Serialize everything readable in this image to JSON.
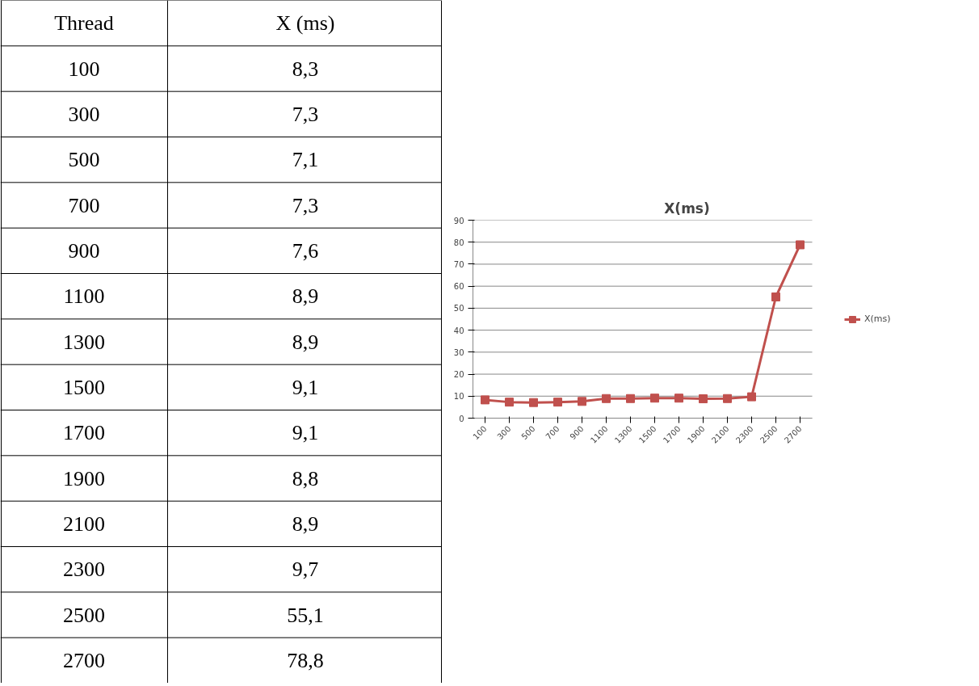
{
  "chart_data": {
    "type": "line",
    "title": "X(ms)",
    "annotations": [
      "Thread",
      "X (ms)"
    ],
    "categories": [
      "100",
      "300",
      "500",
      "700",
      "900",
      "1100",
      "1300",
      "1500",
      "1700",
      "1900",
      "2100",
      "2300",
      "2500",
      "2700"
    ],
    "series": [
      {
        "name": "X(ms)",
        "color": "#c0504d",
        "values": [
          8.3,
          7.3,
          7.1,
          7.3,
          7.6,
          8.9,
          8.9,
          9.1,
          9.1,
          8.8,
          8.9,
          9.7,
          55.1,
          78.8
        ]
      }
    ],
    "value_labels": [
      "8,3",
      "7,3",
      "7,1",
      "7,3",
      "7,6",
      "8,9",
      "8,9",
      "9,1",
      "9,1",
      "8,8",
      "8,9",
      "9,7",
      "55,1",
      "78,8"
    ],
    "ylim": [
      0,
      90
    ],
    "yticks": [
      0,
      10,
      20,
      30,
      40,
      50,
      60,
      70,
      80,
      90
    ],
    "grid": "y",
    "legend": "right",
    "marker": "square",
    "line_style": "solid"
  }
}
